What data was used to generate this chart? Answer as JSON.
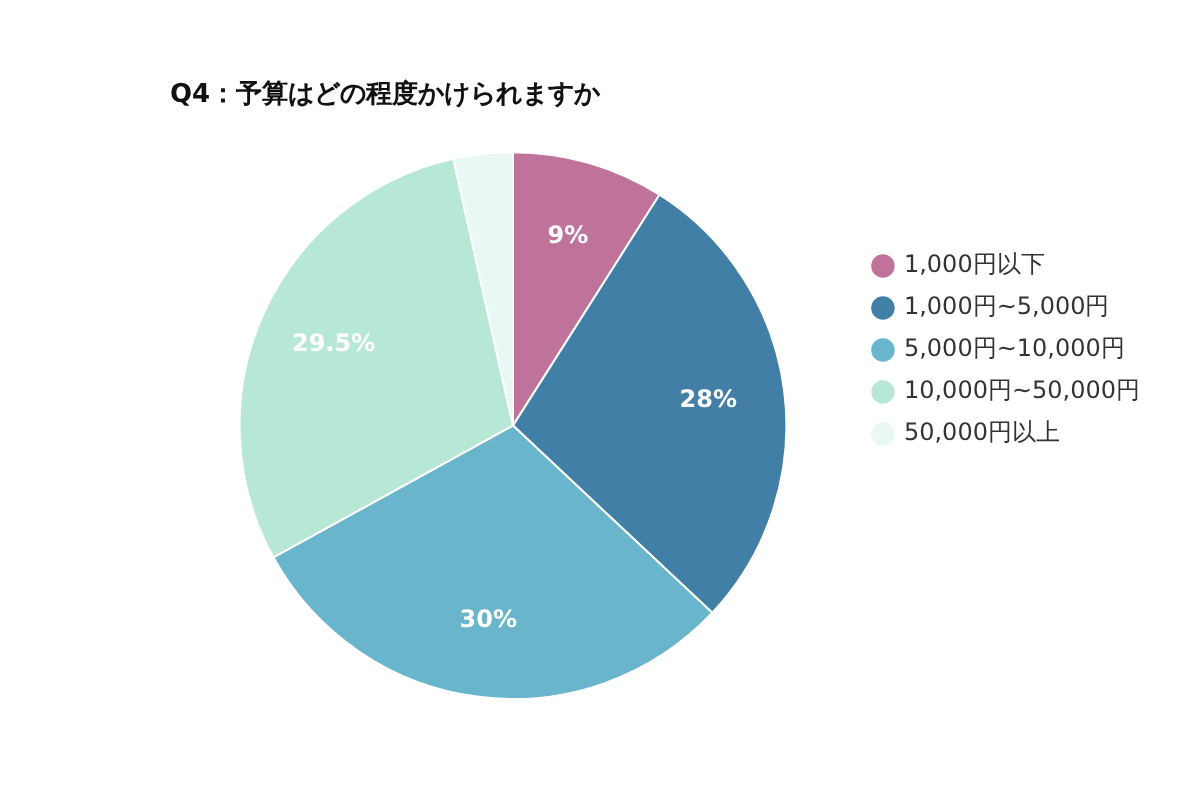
{
  "chart_data": {
    "type": "pie",
    "title": "Q4：予算はどの程度かけられますか",
    "categories": [
      "1,000円以下",
      "1,000円~5,000円",
      "5,000円~10,000円",
      "10,000円~50,000円",
      "50,000円以上"
    ],
    "values": [
      9,
      28,
      30,
      29.5,
      3.5
    ],
    "colors": [
      "#c0739a",
      "#417fa6",
      "#68b5cc",
      "#b7e8d6",
      "#e9f7f5"
    ],
    "value_labels": [
      "9%",
      "28%",
      "30%",
      "29.5%",
      null
    ],
    "legend": "right"
  }
}
